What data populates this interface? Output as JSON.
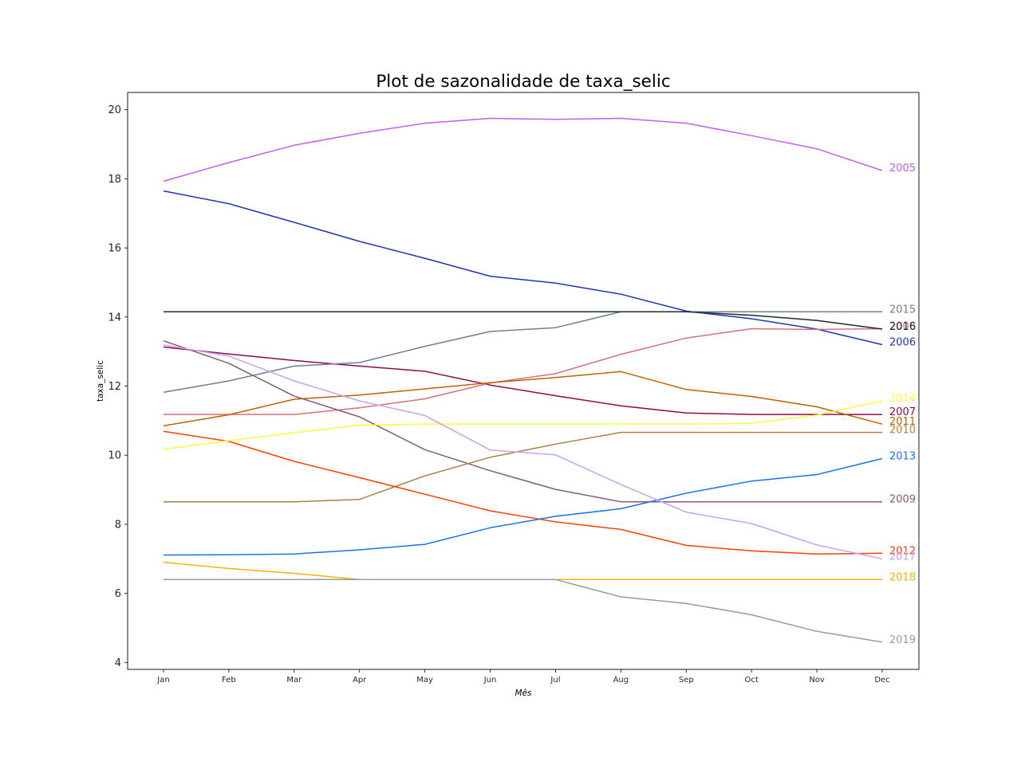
{
  "chart_data": {
    "type": "line",
    "title": "Plot de sazonalidade de taxa_selic",
    "xlabel": "Mês",
    "ylabel": "taxa_selic",
    "categories": [
      "Jan",
      "Feb",
      "Mar",
      "Apr",
      "May",
      "Jun",
      "Jul",
      "Aug",
      "Sep",
      "Oct",
      "Nov",
      "Dec"
    ],
    "ylim": [
      3.8,
      20.5
    ],
    "yticks": [
      4,
      6,
      8,
      10,
      12,
      14,
      16,
      18,
      20
    ],
    "grid": false,
    "legend": "inline labels at right end of each series",
    "series": [
      {
        "name": "2005",
        "color": "#c65cf2",
        "values": [
          17.93,
          18.47,
          18.97,
          19.32,
          19.61,
          19.75,
          19.72,
          19.75,
          19.61,
          19.25,
          18.87,
          18.24
        ]
      },
      {
        "name": "2006",
        "color": "#1f35b0",
        "values": [
          17.65,
          17.28,
          16.74,
          16.19,
          15.7,
          15.18,
          14.98,
          14.66,
          14.17,
          13.95,
          13.65,
          13.2
        ]
      },
      {
        "name": "2007",
        "color": "#8c0a50",
        "values": [
          13.13,
          12.93,
          12.74,
          12.58,
          12.43,
          12.03,
          11.72,
          11.43,
          11.22,
          11.18,
          11.18,
          11.18
        ]
      },
      {
        "name": "2008",
        "color": "#d6707c",
        "values": [
          11.18,
          11.18,
          11.18,
          11.37,
          11.63,
          12.09,
          12.36,
          12.92,
          13.39,
          13.66,
          13.64,
          13.66
        ]
      },
      {
        "name": "2009",
        "color": "#845a7e",
        "values": [
          13.31,
          12.66,
          11.71,
          11.11,
          10.16,
          9.55,
          9.01,
          8.65,
          8.65,
          8.65,
          8.65,
          8.65
        ]
      },
      {
        "name": "2010",
        "color": "#a88240",
        "values": [
          8.65,
          8.65,
          8.65,
          8.72,
          9.4,
          9.94,
          10.32,
          10.66,
          10.66,
          10.66,
          10.66,
          10.66
        ]
      },
      {
        "name": "2011",
        "color": "#c06000",
        "values": [
          10.85,
          11.17,
          11.62,
          11.74,
          11.92,
          12.1,
          12.25,
          12.42,
          11.9,
          11.7,
          11.4,
          10.9
        ]
      },
      {
        "name": "2012",
        "color": "#ff3f00",
        "values": [
          10.69,
          10.4,
          9.82,
          9.35,
          8.87,
          8.39,
          8.07,
          7.85,
          7.39,
          7.23,
          7.14,
          7.16
        ]
      },
      {
        "name": "2013",
        "color": "#1a74e8",
        "values": [
          7.11,
          7.12,
          7.14,
          7.26,
          7.42,
          7.9,
          8.23,
          8.45,
          8.9,
          9.25,
          9.44,
          9.9
        ]
      },
      {
        "name": "2014",
        "color": "#fffa3c",
        "values": [
          10.17,
          10.42,
          10.65,
          10.87,
          10.9,
          10.9,
          10.9,
          10.9,
          10.9,
          10.92,
          11.16,
          11.57
        ]
      },
      {
        "name": "2015",
        "color": "#6e8090",
        "values": [
          11.82,
          12.15,
          12.58,
          12.68,
          13.15,
          13.58,
          13.69,
          14.15,
          14.15,
          14.15,
          14.15,
          14.15
        ]
      },
      {
        "name": "2016",
        "color": "#1a2b33",
        "values": [
          14.15,
          14.15,
          14.15,
          14.15,
          14.15,
          14.15,
          14.15,
          14.15,
          14.15,
          14.05,
          13.9,
          13.65
        ]
      },
      {
        "name": "2017",
        "color": "#c8a2f0",
        "values": [
          13.19,
          12.87,
          12.15,
          11.57,
          11.15,
          10.15,
          10.01,
          9.15,
          8.35,
          8.02,
          7.4,
          7.0
        ]
      },
      {
        "name": "2018",
        "color": "#ffb000",
        "values": [
          6.9,
          6.72,
          6.58,
          6.4,
          6.4,
          6.4,
          6.4,
          6.4,
          6.4,
          6.4,
          6.4,
          6.4
        ]
      },
      {
        "name": "2019",
        "color": "#8f9e9e",
        "values": [
          6.4,
          6.4,
          6.4,
          6.4,
          6.4,
          6.4,
          6.4,
          5.9,
          5.71,
          5.38,
          4.9,
          4.59
        ]
      }
    ]
  }
}
